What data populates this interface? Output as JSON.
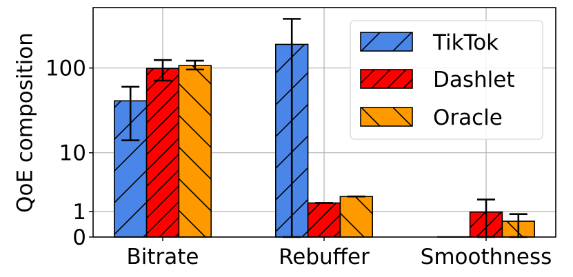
{
  "chart_data": {
    "type": "bar",
    "title": "",
    "xlabel": "",
    "ylabel": "QoE composition",
    "yscale": "symlog",
    "ylim": [
      0,
      550
    ],
    "yticks": [
      0,
      1,
      10,
      100
    ],
    "ytick_labels": [
      "0",
      "1",
      "10",
      "100"
    ],
    "grid": true,
    "legend_position": "upper right",
    "categories": [
      "Bitrate",
      "Rebuffer",
      "Smoothness"
    ],
    "series": [
      {
        "name": "TikTok",
        "color": "#4a86e8",
        "hatch": "/",
        "values": [
          41,
          190,
          0.01
        ],
        "err_low": [
          14,
          0,
          0
        ],
        "err_high": [
          60,
          380,
          0
        ]
      },
      {
        "name": "Dashlet",
        "color": "#ff0000",
        "hatch": "//",
        "values": [
          99,
          1.4,
          0.98
        ],
        "err_low": [
          71,
          1.4,
          0
        ],
        "err_high": [
          124,
          1.4,
          1.6
        ]
      },
      {
        "name": "Oracle",
        "color": "#ff9900",
        "hatch": "\\",
        "values": [
          107,
          1.8,
          0.62
        ],
        "err_low": [
          96,
          1.8,
          0
        ],
        "err_high": [
          122,
          1.8,
          0.9
        ]
      }
    ]
  }
}
